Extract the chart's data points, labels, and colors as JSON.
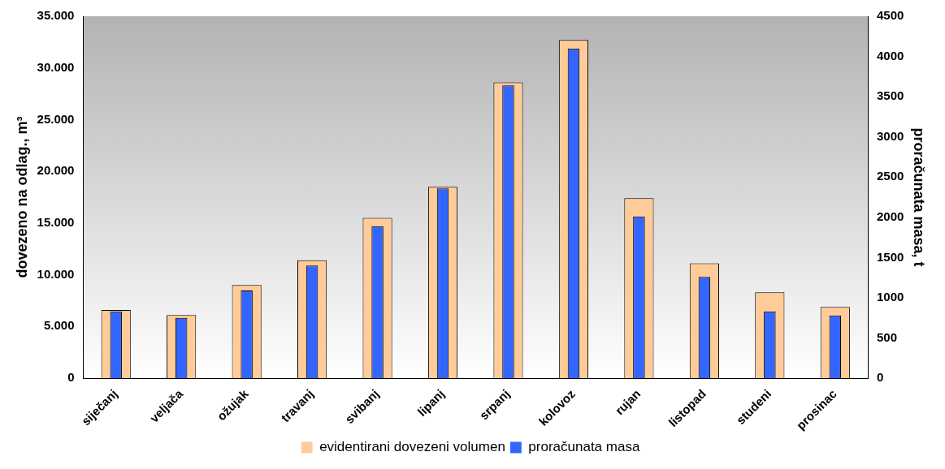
{
  "chart_data": {
    "type": "bar",
    "ylabel": "dovezeno na odlag., m³",
    "y2label": "proračunata masa, t",
    "categories": [
      "siječanj",
      "veljača",
      "ožujak",
      "travanj",
      "svibanj",
      "lipanj",
      "srpanj",
      "kolovoz",
      "rujan",
      "listopad",
      "studeni",
      "prosinac"
    ],
    "series": [
      {
        "name": "evidentirani dovezeni volumen",
        "color": "#ffcc99",
        "values": [
          6600,
          6100,
          9000,
          11400,
          15500,
          18500,
          28600,
          32700,
          17400,
          11100,
          8300,
          6900
        ]
      },
      {
        "name": "proračunata masa",
        "color": "#3366ff",
        "axis": "y2",
        "values": [
          830,
          750,
          1090,
          1400,
          1890,
          2360,
          3640,
          4100,
          2010,
          1260,
          830,
          780
        ]
      }
    ],
    "ylim": [
      0,
      35000
    ],
    "yticks": [
      0,
      {
        "value": 5000,
        "label": "5.000"
      },
      {
        "value": 10000,
        "label": "10.000"
      },
      {
        "value": 15000,
        "label": "15.000"
      },
      {
        "value": 20000,
        "label": "20.000"
      },
      {
        "value": 25000,
        "label": "25.000"
      },
      {
        "value": 30000,
        "label": "30.000"
      },
      {
        "value": 35000,
        "label": "35.000"
      }
    ],
    "y2lim": [
      0,
      4500
    ],
    "y2ticks": [
      0,
      500,
      1000,
      1500,
      2000,
      2500,
      3000,
      3500,
      4000,
      4500
    ],
    "grid": false,
    "legend": "bottom"
  }
}
